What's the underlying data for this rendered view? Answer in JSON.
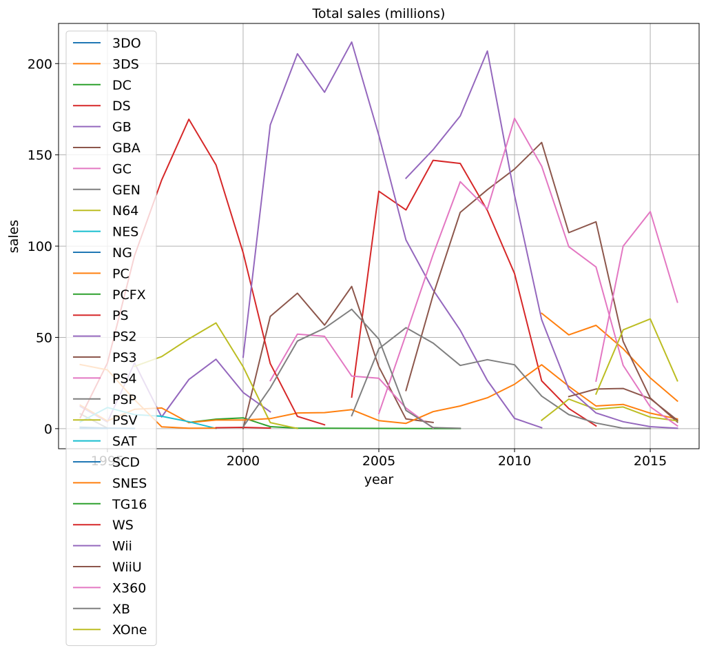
{
  "chart_data": {
    "type": "line",
    "title": "Total sales (millions)",
    "xlabel": "year",
    "ylabel": "sales",
    "xlim": [
      1993.2,
      2016.8
    ],
    "ylim": [
      -11,
      222
    ],
    "xticks": [
      1995,
      2000,
      2005,
      2010,
      2015
    ],
    "yticks": [
      0,
      50,
      100,
      150,
      200
    ],
    "grid": true,
    "legend_position": "upper-left",
    "series": [
      {
        "name": "3DO",
        "color": "#1f77b4",
        "x": [
          1994,
          1995
        ],
        "y": [
          0.1,
          0.1
        ]
      },
      {
        "name": "3DS",
        "color": "#ff7f0e",
        "x": [
          2011,
          2012,
          2013,
          2014,
          2015,
          2016
        ],
        "y": [
          63.2,
          51.4,
          56.6,
          43.8,
          27.8,
          15.1
        ]
      },
      {
        "name": "DC",
        "color": "#2ca02c",
        "x": [
          1998,
          1999,
          2000,
          2001,
          2002,
          2007,
          2008
        ],
        "y": [
          3.4,
          5.2,
          5.9,
          1.1,
          0.3,
          0.02,
          0.04
        ]
      },
      {
        "name": "DS",
        "color": "#d62728",
        "x": [
          2004,
          2005,
          2006,
          2007,
          2008,
          2009,
          2010,
          2011,
          2012,
          2013
        ],
        "y": [
          17.3,
          130.1,
          119.8,
          147.0,
          145.3,
          119.5,
          85.0,
          26.2,
          11.0,
          1.5
        ]
      },
      {
        "name": "GB",
        "color": "#9467bd",
        "x": [
          1994,
          1995,
          1996,
          1997,
          1998,
          1999,
          2000,
          2001
        ],
        "y": [
          12.2,
          3.6,
          36.0,
          6.4,
          26.9,
          38.0,
          19.8,
          9.2
        ]
      },
      {
        "name": "GBA",
        "color": "#8c564b",
        "x": [
          2000,
          2001,
          2002,
          2003,
          2004,
          2005,
          2006,
          2007
        ],
        "y": [
          0.07,
          61.5,
          74.2,
          56.7,
          77.9,
          33.9,
          5.3,
          3.4
        ]
      },
      {
        "name": "GC",
        "color": "#e377c2",
        "x": [
          2001,
          2002,
          2003,
          2004,
          2005,
          2006,
          2007
        ],
        "y": [
          26.3,
          51.8,
          50.6,
          28.8,
          27.6,
          11.3,
          0.3
        ]
      },
      {
        "name": "GEN",
        "color": "#7f7f7f",
        "x": [
          1994,
          1995
        ],
        "y": [
          8.1,
          0.3
        ]
      },
      {
        "name": "N64",
        "color": "#bcbd22",
        "x": [
          1996,
          1997,
          1998,
          1999,
          2000,
          2001,
          2002
        ],
        "y": [
          34.1,
          39.5,
          49.2,
          57.9,
          33.9,
          3.3,
          0.1
        ]
      },
      {
        "name": "NES",
        "color": "#17becf",
        "x": [
          1994
        ],
        "y": [
          0.1
        ]
      },
      {
        "name": "NG",
        "color": "#1f77b4",
        "x": [
          1994,
          1995,
          1996
        ],
        "y": [
          0.8,
          0.3,
          0.1
        ]
      },
      {
        "name": "PC",
        "color": "#ff7f0e",
        "x": [
          1994,
          1995,
          1996,
          1997,
          1998,
          1999,
          2000,
          2001,
          2002,
          2003,
          2004,
          2005,
          2006,
          2007,
          2008,
          2009,
          2010,
          2011,
          2012,
          2013,
          2014,
          2015,
          2016
        ],
        "y": [
          12.9,
          4.2,
          10.6,
          11.3,
          3.3,
          4.7,
          4.7,
          5.5,
          8.6,
          8.8,
          10.4,
          4.4,
          2.9,
          9.3,
          12.4,
          16.9,
          24.3,
          35.0,
          23.2,
          12.4,
          13.3,
          8.5,
          5.3
        ]
      },
      {
        "name": "PCFX",
        "color": "#2ca02c",
        "x": [
          1996
        ],
        "y": [
          0.03
        ]
      },
      {
        "name": "PS",
        "color": "#d62728",
        "x": [
          1994,
          1995,
          1996,
          1997,
          1998,
          1999,
          2000,
          2001,
          2002,
          2003
        ],
        "y": [
          6.0,
          35.9,
          94.7,
          136.2,
          169.5,
          144.5,
          96.4,
          35.6,
          6.7,
          2.1
        ]
      },
      {
        "name": "PS2",
        "color": "#9467bd",
        "x": [
          2000,
          2001,
          2002,
          2003,
          2004,
          2005,
          2006,
          2007,
          2008,
          2009,
          2010,
          2011
        ],
        "y": [
          39.2,
          166.4,
          205.4,
          184.3,
          211.8,
          160.7,
          103.4,
          76.0,
          53.9,
          26.4,
          5.6,
          0.5
        ]
      },
      {
        "name": "PS3",
        "color": "#8c564b",
        "x": [
          2006,
          2007,
          2008,
          2009,
          2010,
          2011,
          2012,
          2013,
          2014,
          2015,
          2016
        ],
        "y": [
          20.9,
          73.2,
          118.5,
          130.9,
          142.2,
          156.8,
          107.4,
          113.3,
          47.8,
          16.8,
          3.6
        ]
      },
      {
        "name": "PS4",
        "color": "#e377c2",
        "x": [
          2013,
          2014,
          2015,
          2016
        ],
        "y": [
          25.99,
          100.0,
          118.9,
          69.3
        ]
      },
      {
        "name": "PSP",
        "color": "#7f7f7f",
        "x": [
          2004,
          2005,
          2006,
          2007,
          2008,
          2009,
          2010,
          2011,
          2012,
          2013,
          2014,
          2015
        ],
        "y": [
          7.1,
          43.8,
          55.3,
          46.9,
          34.6,
          37.8,
          35.0,
          17.8,
          7.7,
          3.1,
          0.2,
          0.1
        ]
      },
      {
        "name": "PSV",
        "color": "#bcbd22",
        "x": [
          2011,
          2012,
          2013,
          2014,
          2015,
          2016
        ],
        "y": [
          4.6,
          16.2,
          10.6,
          11.9,
          6.3,
          4.3
        ]
      },
      {
        "name": "SAT",
        "color": "#17becf",
        "x": [
          1994,
          1995,
          1996,
          1997,
          1998,
          1999
        ],
        "y": [
          3.7,
          11.6,
          7.7,
          6.8,
          3.8,
          0.1
        ]
      },
      {
        "name": "SCD",
        "color": "#1f77b4",
        "x": [
          1994
        ],
        "y": [
          0.4
        ]
      },
      {
        "name": "SNES",
        "color": "#ff7f0e",
        "x": [
          1994,
          1995,
          1996,
          1997,
          1998,
          1999
        ],
        "y": [
          35.1,
          32.2,
          15.9,
          0.99,
          0.2,
          0.3
        ]
      },
      {
        "name": "TG16",
        "color": "#2ca02c",
        "x": [
          1995
        ],
        "y": [
          0.2
        ]
      },
      {
        "name": "WS",
        "color": "#d62728",
        "x": [
          1999,
          2000,
          2001
        ],
        "y": [
          0.5,
          0.7,
          0.3
        ]
      },
      {
        "name": "Wii",
        "color": "#9467bd",
        "x": [
          2006,
          2007,
          2008,
          2009,
          2010,
          2011,
          2012,
          2013,
          2014,
          2015,
          2016
        ],
        "y": [
          137.2,
          152.8,
          171.3,
          206.9,
          127.9,
          59.7,
          21.7,
          8.6,
          3.8,
          1.1,
          0.2
        ]
      },
      {
        "name": "WiiU",
        "color": "#8c564b",
        "x": [
          2012,
          2013,
          2014,
          2015,
          2016
        ],
        "y": [
          17.6,
          21.7,
          22.0,
          16.4,
          4.6
        ]
      },
      {
        "name": "X360",
        "color": "#e377c2",
        "x": [
          2005,
          2006,
          2007,
          2008,
          2009,
          2010,
          2011,
          2012,
          2013,
          2014,
          2015,
          2016
        ],
        "y": [
          8.3,
          51.6,
          95.4,
          135.3,
          120.3,
          170.0,
          143.8,
          99.7,
          88.6,
          34.7,
          11.96,
          1.5
        ]
      },
      {
        "name": "XB",
        "color": "#7f7f7f",
        "x": [
          2000,
          2001,
          2002,
          2003,
          2004,
          2005,
          2006,
          2007,
          2008
        ],
        "y": [
          1.0,
          22.3,
          48.0,
          55.0,
          65.4,
          49.1,
          10.0,
          0.6,
          0.2
        ]
      },
      {
        "name": "XOne",
        "color": "#bcbd22",
        "x": [
          2013,
          2014,
          2015,
          2016
        ],
        "y": [
          18.96,
          54.1,
          60.1,
          26.2
        ]
      }
    ]
  }
}
